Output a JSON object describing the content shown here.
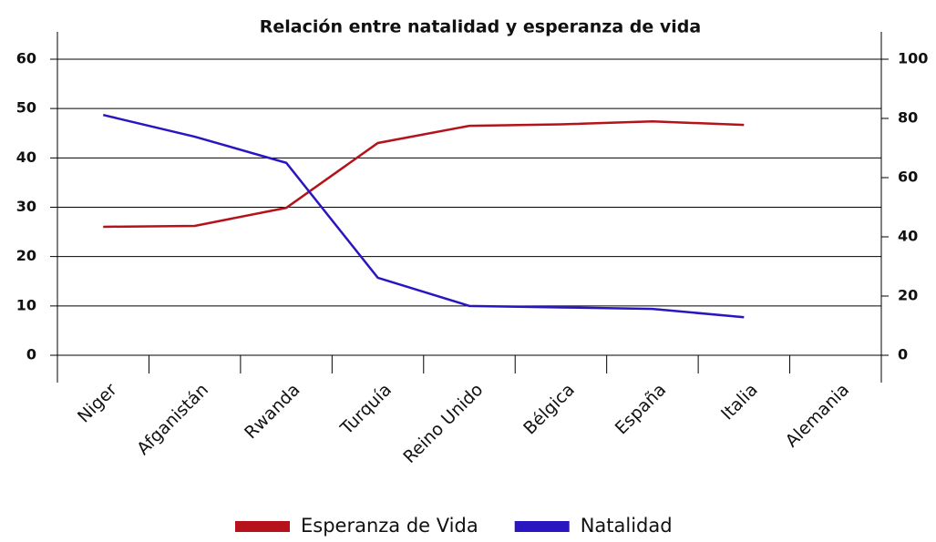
{
  "chart_data": {
    "type": "line",
    "title": "Relación entre natalidad y esperanza de vida",
    "categories": [
      "Niger",
      "Afganistán",
      "Rwanda",
      "Turquía",
      "Reino Unido",
      "Bélgica",
      "España",
      "Italia",
      "Alemania"
    ],
    "series": [
      {
        "name": "Esperanza de Vida",
        "color": "#b5121b",
        "axis": "y2",
        "values": [
          43.4,
          43.7,
          49.8,
          71.7,
          77.5,
          78,
          79,
          77.8,
          null
        ]
      },
      {
        "name": "Natalidad",
        "color": "#2a16c0",
        "values": [
          48.7,
          44.3,
          39,
          15.7,
          10,
          9.7,
          9.4,
          7.7,
          null
        ]
      }
    ],
    "ylim": [
      0,
      60
    ],
    "yticks": [
      0,
      10,
      20,
      30,
      40,
      50,
      60
    ],
    "y2lim": [
      0,
      100
    ],
    "y2ticks": [
      0,
      20,
      40,
      60,
      80,
      100
    ],
    "grid": true,
    "legend": "bottom"
  }
}
